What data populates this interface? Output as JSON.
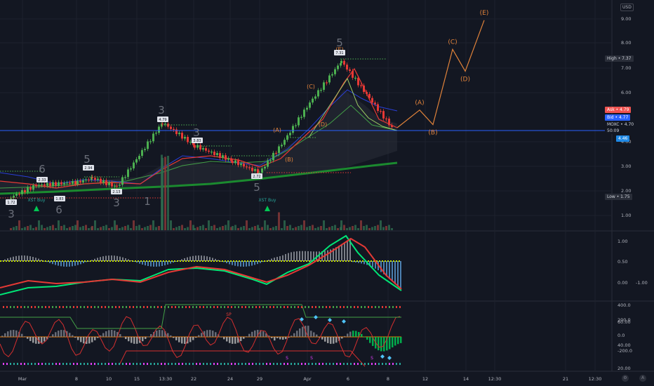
{
  "header": {
    "currency": "USD"
  },
  "colors": {
    "background": "#131722",
    "grid": "#1e222d",
    "up": "#26a69a",
    "down": "#ef5350",
    "candle_up": "#4caf50",
    "candle_down": "#e53935",
    "wave": "#e0823a",
    "price_line": "#2962ff",
    "ma_blue": "#2a3fd6",
    "ma_red": "#e53935",
    "ma_green": "#1b8a2f"
  },
  "price_axis": {
    "labels": [
      "9.00",
      "8.00",
      "7.00",
      "6.00",
      "4.00",
      "3.00",
      "2.00",
      "1.00"
    ],
    "tags": {
      "high": "High • 7.37",
      "ask": "Ask • 4.79",
      "bid": "Bid • 4.77",
      "symbol": "MOXC • 4.70",
      "countdown": "50:09",
      "current": "4.46",
      "low": "Low • 1.75"
    }
  },
  "time_axis": {
    "labels": [
      "Mar",
      "8",
      "10",
      "15",
      "13:30",
      "22",
      "24",
      "29",
      "Apr",
      "6",
      "8",
      "12",
      "14",
      "12:30",
      "21",
      "12:30"
    ]
  },
  "annotations": {
    "candle_values": [
      "1.72",
      "2.33",
      "1.83",
      "2.94",
      "2.13",
      "4.79",
      "3.83",
      "2.72",
      "7.31"
    ],
    "buy_signals": [
      "XST Buy",
      "XST Buy"
    ],
    "td_counts": [
      "3",
      "6",
      "6",
      "5",
      "3",
      "1",
      "3",
      "3",
      "5",
      "5"
    ],
    "wave_labels": [
      "(A)",
      "(B)",
      "(C)",
      "(D)",
      "(E)",
      "(A)",
      "(B)",
      "(C)",
      "(D)",
      "(E)"
    ]
  },
  "oscillator1": {
    "axis_labels": [
      "1.00",
      "0.50",
      "0.00",
      "0.00",
      "-1.00"
    ]
  },
  "oscillator2": {
    "axis_labels_left": [
      "400.0",
      "200.0",
      "0.0",
      "-200.0"
    ],
    "axis_labels_right": [
      "60.00",
      "40.00",
      "20.00"
    ],
    "markers": [
      "SP",
      "S",
      "S",
      "S"
    ]
  },
  "chart_data": {
    "type": "line",
    "x": [
      "Mar 1",
      "Mar 3",
      "Mar 8",
      "Mar 10",
      "Mar 15",
      "Mar 17",
      "Mar 22",
      "Mar 24",
      "Mar 29",
      "Mar 31",
      "Apr 1",
      "Apr 6",
      "Apr 8"
    ],
    "series": [
      {
        "values": [
          1.72,
          2.2,
          2.33,
          2.5,
          2.13,
          4.79,
          3.83,
          3.2,
          2.72,
          3.9,
          5.6,
          7.31,
          4.46
        ]
      }
    ],
    "projection_wave": {
      "labels": [
        "(A)",
        "(B)",
        "(C)",
        "(D)",
        "(E)"
      ],
      "values": [
        5.3,
        4.7,
        7.8,
        6.9,
        9.0
      ]
    },
    "ylim": [
      0.7,
      9.4
    ],
    "y_tick_labels": [
      "1.00",
      "2.00",
      "3.00",
      "4.00",
      "6.00",
      "7.00",
      "8.00",
      "9.00"
    ],
    "high": 7.37,
    "low": 1.75,
    "last": 4.46
  }
}
